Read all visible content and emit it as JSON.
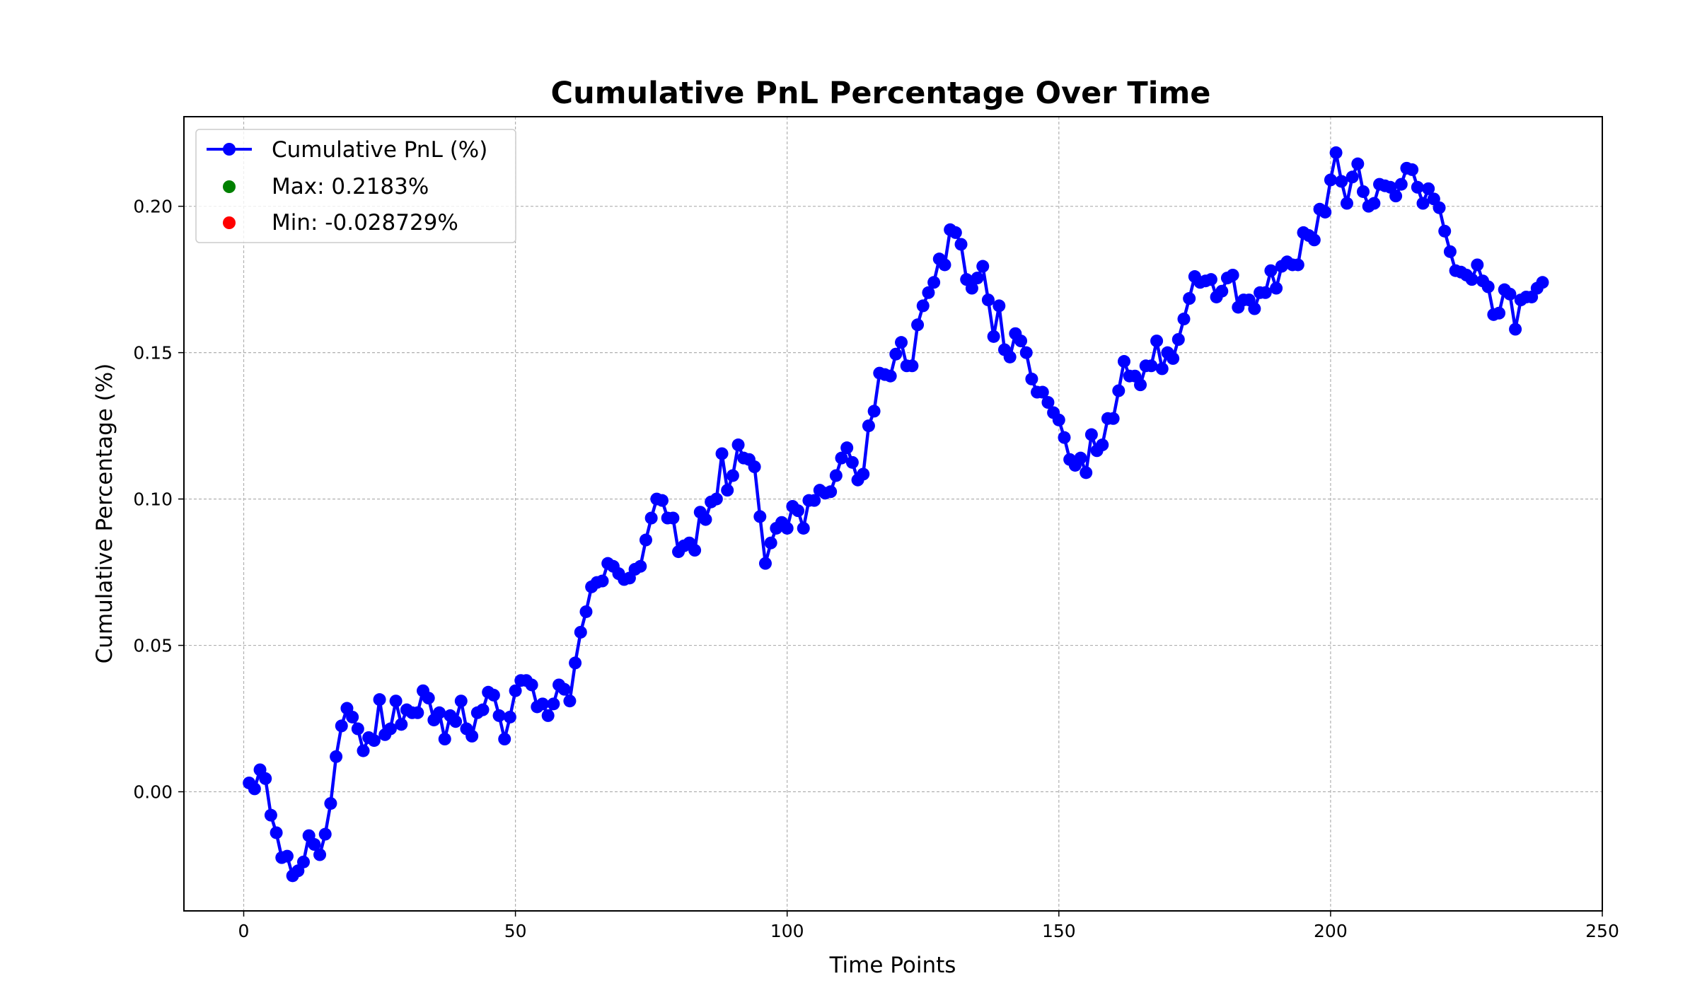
{
  "chart_data": {
    "type": "line",
    "title": "Cumulative PnL Percentage Over Time",
    "xlabel": "Time Points",
    "ylabel": "Cumulative Percentage (%)",
    "xlim": [
      -11,
      250
    ],
    "ylim": [
      -0.0407,
      0.2306
    ],
    "xticks": [
      0,
      50,
      100,
      150,
      200,
      250
    ],
    "yticks": [
      0.0,
      0.05,
      0.1,
      0.15,
      0.2
    ],
    "xtick_labels": [
      "0",
      "50",
      "100",
      "150",
      "200",
      "250"
    ],
    "ytick_labels": [
      "0.00",
      "0.05",
      "0.10",
      "0.15",
      "0.20"
    ],
    "grid": true,
    "legend_position": "upper-left",
    "legend": [
      {
        "label": "Cumulative PnL (%)",
        "color": "#0000ff",
        "marker": "line-dot"
      },
      {
        "label": "Max: 0.2183%",
        "color": "#008000",
        "marker": "dot"
      },
      {
        "label": "Min: -0.028729%",
        "color": "#ff0000",
        "marker": "dot"
      }
    ],
    "series": [
      {
        "name": "Cumulative PnL (%)",
        "color": "#0000ff",
        "x": [
          1,
          2,
          3,
          4,
          5,
          6,
          7,
          8,
          9,
          10,
          11,
          12,
          13,
          14,
          15,
          16,
          17,
          18,
          19,
          20,
          21,
          22,
          23,
          24,
          25,
          26,
          27,
          28,
          29,
          30,
          31,
          32,
          33,
          34,
          35,
          36,
          37,
          38,
          39,
          40,
          41,
          42,
          43,
          44,
          45,
          46,
          47,
          48,
          49,
          50,
          51,
          52,
          53,
          54,
          55,
          56,
          57,
          58,
          59,
          60,
          61,
          62,
          63,
          64,
          65,
          66,
          67,
          68,
          69,
          70,
          71,
          72,
          73,
          74,
          75,
          76,
          77,
          78,
          79,
          80,
          81,
          82,
          83,
          84,
          85,
          86,
          87,
          88,
          89,
          90,
          91,
          92,
          93,
          94,
          95,
          96,
          97,
          98,
          99,
          100,
          101,
          102,
          103,
          104,
          105,
          106,
          107,
          108,
          109,
          110,
          111,
          112,
          113,
          114,
          115,
          116,
          117,
          118,
          119,
          120,
          121,
          122,
          123,
          124,
          125,
          126,
          127,
          128,
          129,
          130,
          131,
          132,
          133,
          134,
          135,
          136,
          137,
          138,
          139,
          140,
          141,
          142,
          143,
          144,
          145,
          146,
          147,
          148,
          149,
          150,
          151,
          152,
          153,
          154,
          155,
          156,
          157,
          158,
          159,
          160,
          161,
          162,
          163,
          164,
          165,
          166,
          167,
          168,
          169,
          170,
          171,
          172,
          173,
          174,
          175,
          176,
          177,
          178,
          179,
          180,
          181,
          182,
          183,
          184,
          185,
          186,
          187,
          188,
          189,
          190,
          191,
          192,
          193,
          194,
          195,
          196,
          197,
          198,
          199,
          200,
          201,
          202,
          203,
          204,
          205,
          206,
          207,
          208,
          209,
          210,
          211,
          212,
          213,
          214,
          215,
          216,
          217,
          218,
          219,
          220,
          221,
          222,
          223,
          224,
          225,
          226,
          227,
          228,
          229,
          230,
          231,
          232,
          233,
          234,
          235,
          236,
          237,
          238,
          239
        ],
        "y": [
          0.003,
          0.001,
          0.0075,
          0.0045,
          -0.008,
          -0.014,
          -0.0225,
          -0.022,
          -0.0287,
          -0.027,
          -0.024,
          -0.015,
          -0.018,
          -0.0215,
          -0.0145,
          -0.004,
          0.012,
          0.0225,
          0.0285,
          0.0255,
          0.0215,
          0.014,
          0.0185,
          0.0175,
          0.0315,
          0.0195,
          0.0215,
          0.031,
          0.023,
          0.028,
          0.027,
          0.027,
          0.0345,
          0.032,
          0.0245,
          0.027,
          0.018,
          0.026,
          0.024,
          0.031,
          0.0215,
          0.019,
          0.027,
          0.028,
          0.034,
          0.033,
          0.026,
          0.018,
          0.0255,
          0.0345,
          0.038,
          0.038,
          0.0365,
          0.029,
          0.03,
          0.026,
          0.03,
          0.0365,
          0.035,
          0.031,
          0.044,
          0.0545,
          0.0615,
          0.07,
          0.0715,
          0.072,
          0.078,
          0.077,
          0.0745,
          0.0725,
          0.073,
          0.076,
          0.077,
          0.086,
          0.0935,
          0.1,
          0.0995,
          0.0935,
          0.0935,
          0.082,
          0.084,
          0.085,
          0.0825,
          0.0955,
          0.093,
          0.099,
          0.1,
          0.1155,
          0.103,
          0.108,
          0.1185,
          0.114,
          0.1135,
          0.111,
          0.094,
          0.078,
          0.085,
          0.09,
          0.092,
          0.09,
          0.0975,
          0.096,
          0.09,
          0.0995,
          0.0995,
          0.103,
          0.102,
          0.1025,
          0.108,
          0.114,
          0.1175,
          0.1125,
          0.1065,
          0.1085,
          0.125,
          0.13,
          0.143,
          0.1425,
          0.142,
          0.1495,
          0.1535,
          0.1455,
          0.1455,
          0.1595,
          0.166,
          0.1705,
          0.174,
          0.182,
          0.18,
          0.192,
          0.191,
          0.187,
          0.175,
          0.172,
          0.1755,
          0.1795,
          0.168,
          0.1555,
          0.166,
          0.151,
          0.1485,
          0.1565,
          0.154,
          0.15,
          0.141,
          0.1365,
          0.1365,
          0.133,
          0.1295,
          0.127,
          0.121,
          0.1135,
          0.1115,
          0.114,
          0.109,
          0.122,
          0.1165,
          0.1185,
          0.1275,
          0.1275,
          0.137,
          0.147,
          0.142,
          0.142,
          0.139,
          0.1455,
          0.1455,
          0.154,
          0.1445,
          0.15,
          0.148,
          0.1545,
          0.1615,
          0.1685,
          0.176,
          0.174,
          0.1745,
          0.175,
          0.169,
          0.171,
          0.1755,
          0.1765,
          0.1655,
          0.168,
          0.168,
          0.165,
          0.1705,
          0.1705,
          0.178,
          0.172,
          0.1795,
          0.181,
          0.18,
          0.18,
          0.191,
          0.19,
          0.1885,
          0.199,
          0.198,
          0.209,
          0.2183,
          0.2085,
          0.201,
          0.21,
          0.2145,
          0.205,
          0.2,
          0.201,
          0.2075,
          0.207,
          0.2065,
          0.2035,
          0.2075,
          0.213,
          0.2125,
          0.2065,
          0.201,
          0.206,
          0.2025,
          0.1995,
          0.1915,
          0.1845,
          0.178,
          0.1775,
          0.1765,
          0.175,
          0.18,
          0.1745,
          0.1725,
          0.163,
          0.1635,
          0.1715,
          0.17,
          0.158,
          0.168,
          0.169,
          0.169,
          0.172,
          0.174
        ]
      }
    ]
  }
}
